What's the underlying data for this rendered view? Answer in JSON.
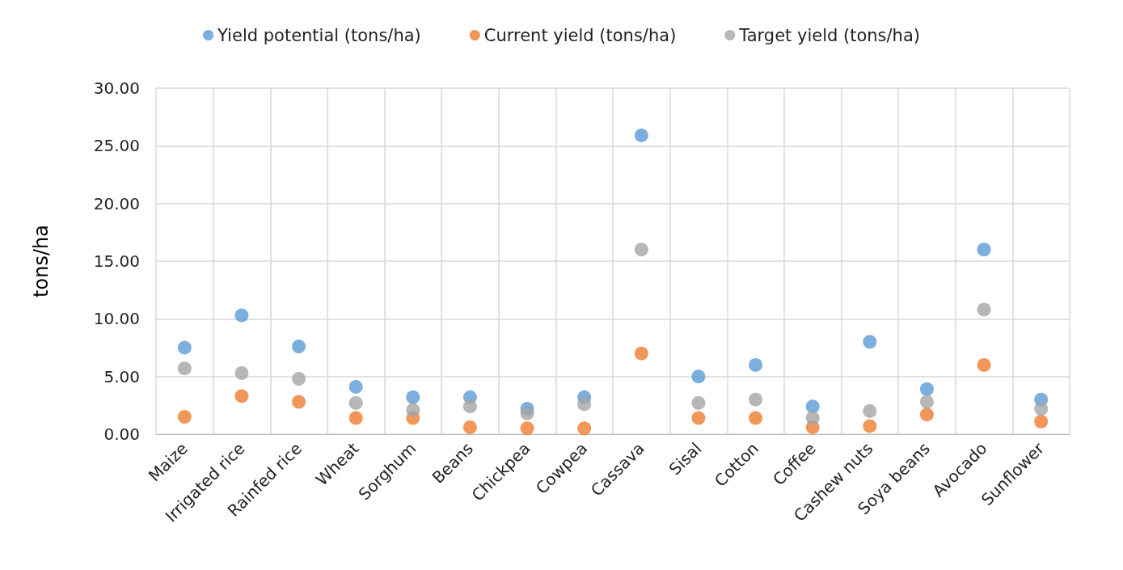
{
  "chart_data": {
    "type": "scatter",
    "ylabel": "tons/ha",
    "categories": [
      "Maize",
      "Irrigated rice",
      "Rainfed rice",
      "Wheat",
      "Sorghum",
      "Beans",
      "Chickpea",
      "Cowpea",
      "Cassava",
      "Sisal",
      "Cotton",
      "Coffee",
      "Cashew nuts",
      "Soya beans",
      "Avocado",
      "Sunflower"
    ],
    "series": [
      {
        "name": "Yield potential (tons/ha)",
        "color": "#5b9bd5",
        "values": [
          7.5,
          10.3,
          7.6,
          4.1,
          3.2,
          3.2,
          2.2,
          3.2,
          25.9,
          5.0,
          6.0,
          2.4,
          8.0,
          3.9,
          16.0,
          3.0
        ]
      },
      {
        "name": "Current yield (tons/ha)",
        "color": "#ed7d31",
        "values": [
          1.5,
          3.3,
          2.8,
          1.4,
          1.4,
          0.6,
          0.5,
          0.5,
          7.0,
          1.4,
          1.4,
          0.6,
          0.7,
          1.7,
          6.0,
          1.1
        ]
      },
      {
        "name": "Target yield (tons/ha)",
        "color": "#a5a5a5",
        "values": [
          5.7,
          5.3,
          4.8,
          2.7,
          2.1,
          2.4,
          1.8,
          2.6,
          16.0,
          2.7,
          3.0,
          1.4,
          2.0,
          2.8,
          10.8,
          2.2
        ]
      }
    ],
    "ylim": [
      0,
      30
    ],
    "yticks": [
      {
        "value": 0,
        "label": "0.00"
      },
      {
        "value": 5,
        "label": "5.00"
      },
      {
        "value": 10,
        "label": "10.00"
      },
      {
        "value": 15,
        "label": "15.00"
      },
      {
        "value": 20,
        "label": "20.00"
      },
      {
        "value": 25,
        "label": "25.00"
      },
      {
        "value": 30,
        "label": "30.00"
      }
    ],
    "grid": true,
    "legend": "top",
    "marker": "circle"
  }
}
